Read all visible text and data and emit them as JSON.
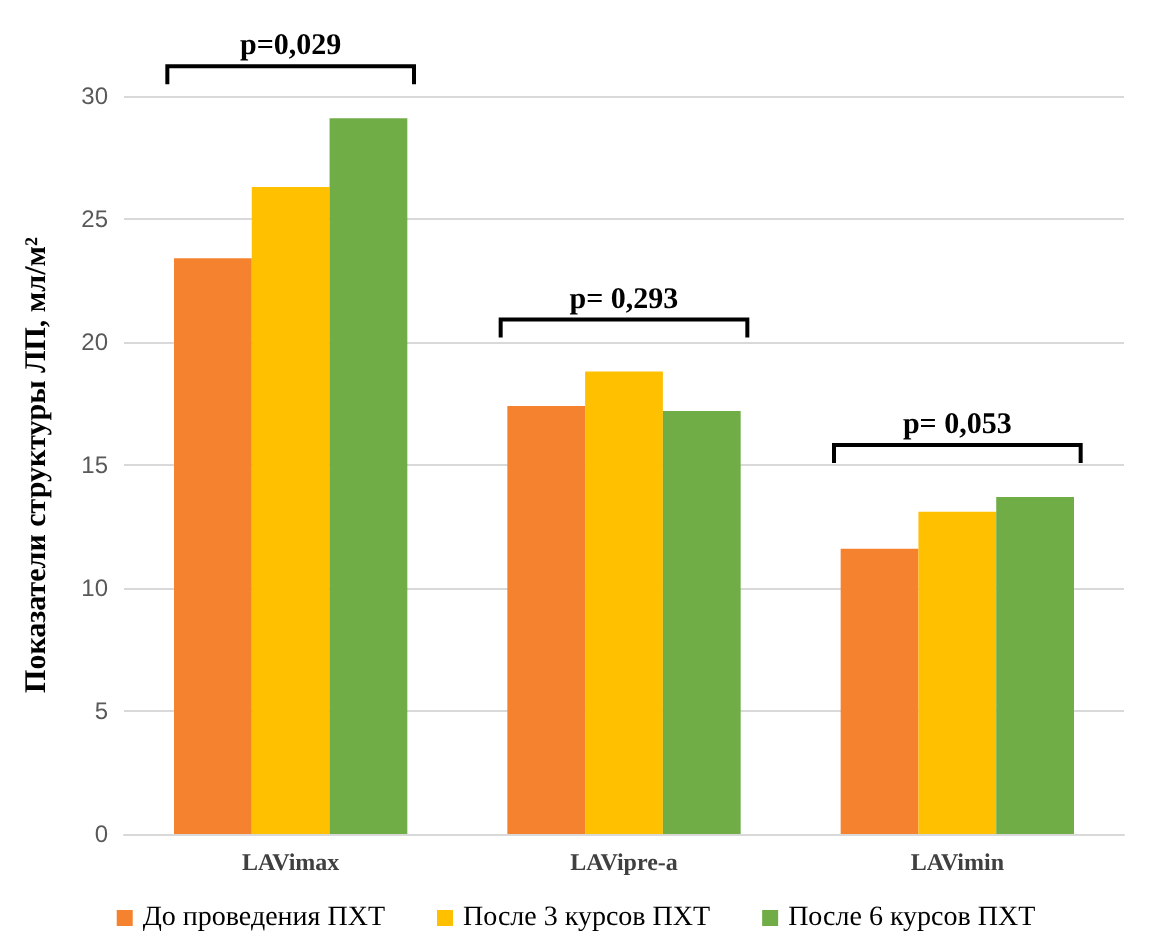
{
  "chart_data": {
    "type": "bar",
    "ylabel": "Показатели структуры ЛП, мл/м²",
    "categories": [
      "LAVimax",
      "LAVipre-a",
      "LAVimin"
    ],
    "series": [
      {
        "name": "До проведения ПХТ",
        "color": "#f5822f",
        "values": [
          23.4,
          17.4,
          11.6
        ]
      },
      {
        "name": "После 3 курсов ПХТ",
        "color": "#ffc000",
        "values": [
          26.3,
          18.8,
          13.1
        ]
      },
      {
        "name": "После 6 курсов ПХТ",
        "color": "#70ad47",
        "values": [
          29.1,
          17.2,
          13.7
        ]
      }
    ],
    "ylim": [
      0,
      30
    ],
    "yticks": [
      0,
      5,
      10,
      15,
      20,
      25,
      30
    ],
    "grid": "y",
    "legend": "bottom",
    "annotations": [
      "p=0,029",
      "p= 0,293",
      "p= 0,053"
    ]
  }
}
